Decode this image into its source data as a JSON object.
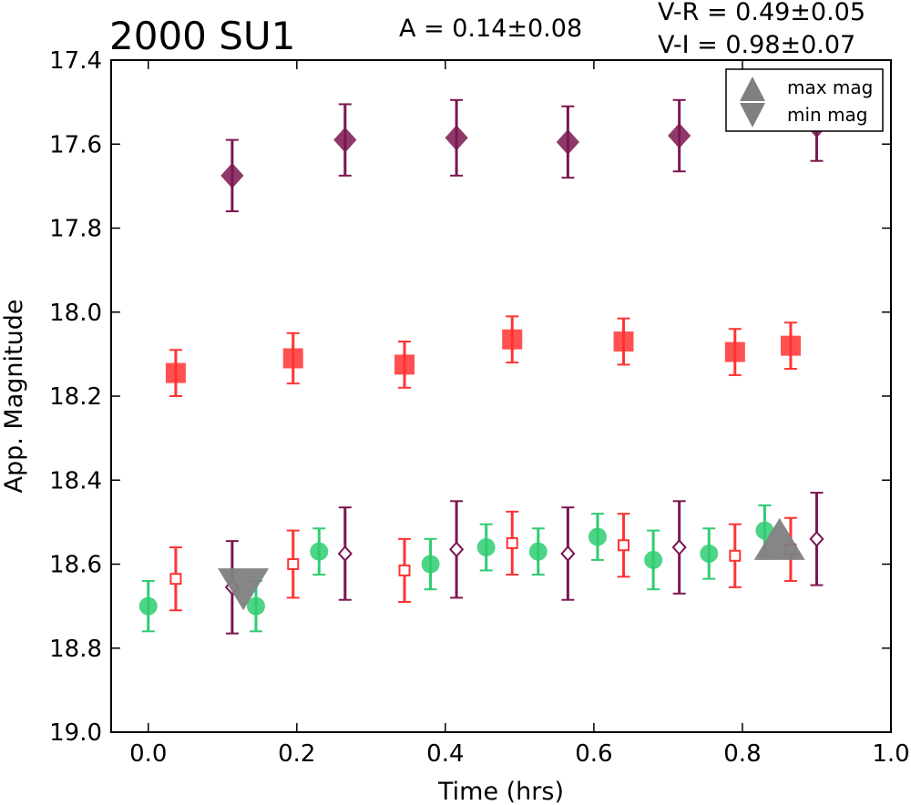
{
  "chart_data": {
    "type": "scatter",
    "title": "2000 SU1",
    "amplitude_label": "A  = 0.14±0.08",
    "color_lines": [
      "V-R = 0.49±0.05",
      "V-I  = 0.98±0.07"
    ],
    "xlabel": "Time (hrs)",
    "ylabel": "App. Magnitude",
    "xlim": [
      -0.05,
      1.0
    ],
    "ylim": [
      19.0,
      17.4
    ],
    "y_inverted": true,
    "grid": false,
    "xticks": [
      "0.0",
      "0.2",
      "0.4",
      "0.6",
      "0.8",
      "1.0"
    ],
    "yticks": [
      "17.4",
      "17.6",
      "17.8",
      "18.0",
      "18.2",
      "18.4",
      "18.6",
      "18.8",
      "19.0"
    ],
    "legend": {
      "placement": "top-right",
      "entries": [
        {
          "label": "max mag",
          "marker": "triangle-up"
        },
        {
          "label": "min mag",
          "marker": "triangle-down"
        }
      ]
    },
    "series": [
      {
        "marker": "circle",
        "color": "#2ecc71",
        "filled": true,
        "points": [
          {
            "x": 0.0,
            "y": 18.7,
            "err": 0.06
          },
          {
            "x": 0.145,
            "y": 18.7,
            "err": 0.06
          },
          {
            "x": 0.23,
            "y": 18.57,
            "err": 0.055
          },
          {
            "x": 0.38,
            "y": 18.6,
            "err": 0.06
          },
          {
            "x": 0.455,
            "y": 18.56,
            "err": 0.055
          },
          {
            "x": 0.525,
            "y": 18.57,
            "err": 0.055
          },
          {
            "x": 0.605,
            "y": 18.535,
            "err": 0.055
          },
          {
            "x": 0.68,
            "y": 18.59,
            "err": 0.07
          },
          {
            "x": 0.755,
            "y": 18.575,
            "err": 0.06
          },
          {
            "x": 0.83,
            "y": 18.52,
            "err": 0.06
          }
        ]
      },
      {
        "marker": "square",
        "color": "#ff3333",
        "filled": false,
        "points": [
          {
            "x": 0.037,
            "y": 18.635,
            "err": 0.075
          },
          {
            "x": 0.195,
            "y": 18.6,
            "err": 0.08
          },
          {
            "x": 0.345,
            "y": 18.615,
            "err": 0.075
          },
          {
            "x": 0.49,
            "y": 18.55,
            "err": 0.075
          },
          {
            "x": 0.64,
            "y": 18.555,
            "err": 0.075
          },
          {
            "x": 0.79,
            "y": 18.58,
            "err": 0.075
          },
          {
            "x": 0.865,
            "y": 18.565,
            "err": 0.075
          }
        ]
      },
      {
        "marker": "diamond",
        "color": "#7b1650",
        "filled": false,
        "points": [
          {
            "x": 0.113,
            "y": 18.655,
            "err": 0.11
          },
          {
            "x": 0.265,
            "y": 18.575,
            "err": 0.11
          },
          {
            "x": 0.415,
            "y": 18.565,
            "err": 0.115
          },
          {
            "x": 0.565,
            "y": 18.575,
            "err": 0.11
          },
          {
            "x": 0.715,
            "y": 18.56,
            "err": 0.11
          },
          {
            "x": 0.9,
            "y": 18.54,
            "err": 0.11
          }
        ]
      },
      {
        "marker": "square",
        "color": "#ff3333",
        "filled": true,
        "points": [
          {
            "x": 0.037,
            "y": 18.145,
            "err": 0.055
          },
          {
            "x": 0.195,
            "y": 18.11,
            "err": 0.06
          },
          {
            "x": 0.345,
            "y": 18.125,
            "err": 0.055
          },
          {
            "x": 0.49,
            "y": 18.065,
            "err": 0.055
          },
          {
            "x": 0.64,
            "y": 18.07,
            "err": 0.055
          },
          {
            "x": 0.79,
            "y": 18.095,
            "err": 0.055
          },
          {
            "x": 0.865,
            "y": 18.08,
            "err": 0.055
          }
        ]
      },
      {
        "marker": "diamond",
        "color": "#7b1650",
        "filled": true,
        "points": [
          {
            "x": 0.113,
            "y": 17.675,
            "err": 0.085
          },
          {
            "x": 0.265,
            "y": 17.59,
            "err": 0.085
          },
          {
            "x": 0.415,
            "y": 17.585,
            "err": 0.09
          },
          {
            "x": 0.565,
            "y": 17.595,
            "err": 0.085
          },
          {
            "x": 0.715,
            "y": 17.58,
            "err": 0.085
          },
          {
            "x": 0.9,
            "y": 17.555,
            "err": 0.085
          }
        ]
      }
    ],
    "extrema_markers": [
      {
        "type": "max",
        "marker": "triangle-up",
        "x": 0.85,
        "y": 18.54,
        "color": "#808080"
      },
      {
        "type": "min",
        "marker": "triangle-down",
        "x": 0.128,
        "y": 18.66,
        "color": "#808080"
      }
    ]
  }
}
